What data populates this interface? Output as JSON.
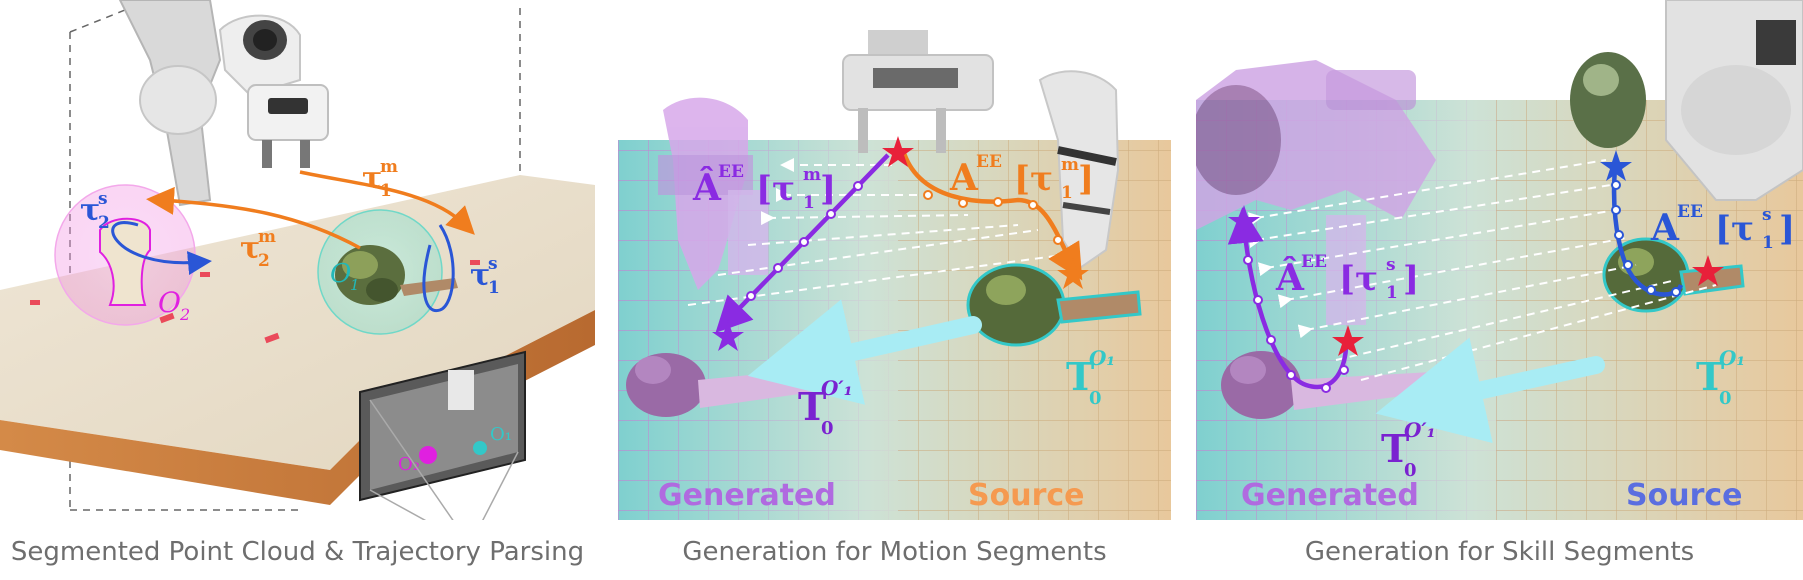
{
  "panels": [
    {
      "caption": "Segmented Point Cloud & Trajectory Parsing",
      "labels": {
        "tau2s_base": "τ",
        "tau2s_sup": "s",
        "tau2s_sub": "2",
        "tau2m_base": "τ",
        "tau2m_sup": "m",
        "tau2m_sub": "2",
        "tau1m_base": "τ",
        "tau1m_sup": "m",
        "tau1m_sub": "1",
        "tau1s_base": "τ",
        "tau1s_sup": "s",
        "tau1s_sub": "1",
        "o2_base": "O",
        "o2_sub": "2",
        "o1_base": "O",
        "o1_sub": "1",
        "inset_o2": "O₂",
        "inset_o1": "O₁"
      }
    },
    {
      "caption": "Generation for Motion Segments",
      "labels": {
        "gen_ahat": "Â",
        "gen_sup": "EE",
        "gen_tau": "[τ",
        "gen_tsup": "m",
        "gen_tsub": "1",
        "gen_close": "]",
        "src_a": "A",
        "src_sup": "EE",
        "src_tau": "[τ",
        "src_tsup": "m",
        "src_tsub": "1",
        "src_close": "]",
        "t_gen_base": "T",
        "t_gen_sub": "0",
        "t_gen_sup": "O′₁",
        "t_src_base": "T",
        "t_src_sub": "0",
        "t_src_sup": "O₁",
        "generated": "Generated",
        "source": "Source"
      }
    },
    {
      "caption": "Generation for Skill Segments",
      "labels": {
        "gen_ahat": "Â",
        "gen_sup": "EE",
        "gen_tau": "[τ",
        "gen_tsup": "s",
        "gen_tsub": "1",
        "gen_close": "]",
        "src_a": "A",
        "src_sup": "EE",
        "src_tau": "[τ",
        "src_tsup": "s",
        "src_tsub": "1",
        "src_close": "]",
        "t_gen_base": "T",
        "t_gen_sub": "0",
        "t_gen_sup": "O′₁",
        "t_src_base": "T",
        "t_src_sub": "0",
        "t_src_sup": "O₁",
        "generated": "Generated",
        "source": "Source"
      }
    }
  ],
  "colors": {
    "orange": "#f07d1e",
    "blue": "#2a56d6",
    "purple": "#8a2be2",
    "magenta": "#e020e0",
    "cyan": "#33c8c8",
    "star_red": "#e8203a"
  }
}
